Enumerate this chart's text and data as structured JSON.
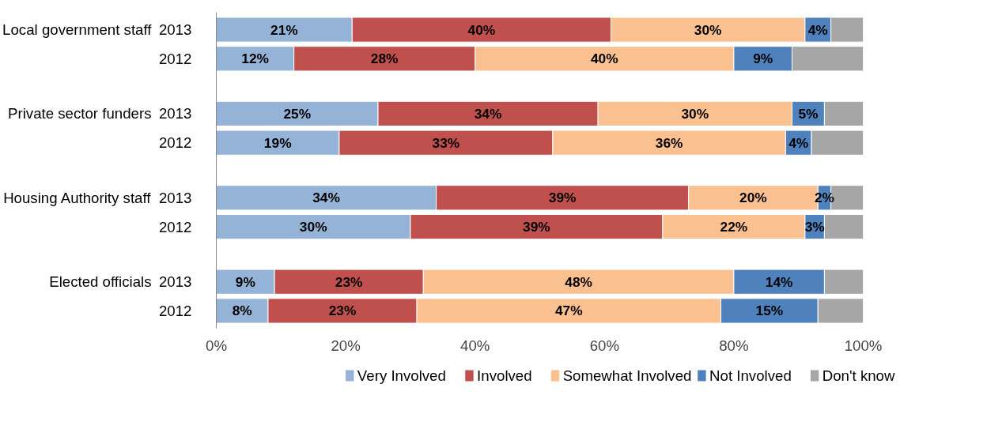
{
  "chart_data": {
    "type": "bar",
    "orientation": "horizontal",
    "stacked": true,
    "categories": [
      "2013",
      "2012",
      "2013",
      "2012",
      "2013",
      "2012",
      "2013",
      "2012"
    ],
    "annotations": [
      "Local government staff",
      "Private sector funders",
      "Housing Authority staff",
      "Elected officials"
    ],
    "series": [
      {
        "name": "Very Involved",
        "color": "#95b3d7",
        "values": [
          21,
          12,
          25,
          19,
          34,
          30,
          9,
          8
        ],
        "value_labels": [
          "21%",
          "12%",
          "25%",
          "19%",
          "34%",
          "30%",
          "9%",
          "8%"
        ]
      },
      {
        "name": "Involved",
        "color": "#c0504d",
        "values": [
          40,
          28,
          34,
          33,
          39,
          39,
          23,
          23
        ],
        "value_labels": [
          "40%",
          "28%",
          "34%",
          "33%",
          "39%",
          "39%",
          "23%",
          "23%"
        ]
      },
      {
        "name": "Somewhat Involved",
        "color": "#fac090",
        "values": [
          30,
          40,
          30,
          36,
          20,
          22,
          48,
          47
        ],
        "value_labels": [
          "30%",
          "40%",
          "30%",
          "36%",
          "20%",
          "22%",
          "48%",
          "47%"
        ]
      },
      {
        "name": "Not Involved",
        "color": "#4f81bd",
        "values": [
          4,
          9,
          5,
          4,
          2,
          3,
          14,
          15
        ],
        "value_labels": [
          "4%",
          "9%",
          "5%",
          "4%",
          "2%",
          "3%",
          "14%",
          "15%"
        ]
      },
      {
        "name": "Don't know",
        "color": "#a6a6a6",
        "values": [
          5,
          11,
          6,
          8,
          5,
          6,
          6,
          7
        ]
      }
    ],
    "xlim": [
      0,
      100
    ],
    "xticks": [
      {
        "value": 0,
        "label": "0%"
      },
      {
        "value": 20,
        "label": "20%"
      },
      {
        "value": 40,
        "label": "40%"
      },
      {
        "value": 60,
        "label": "60%"
      },
      {
        "value": 80,
        "label": "80%"
      },
      {
        "value": 100,
        "label": "100%"
      }
    ],
    "grid": false,
    "legend": "bottom"
  }
}
